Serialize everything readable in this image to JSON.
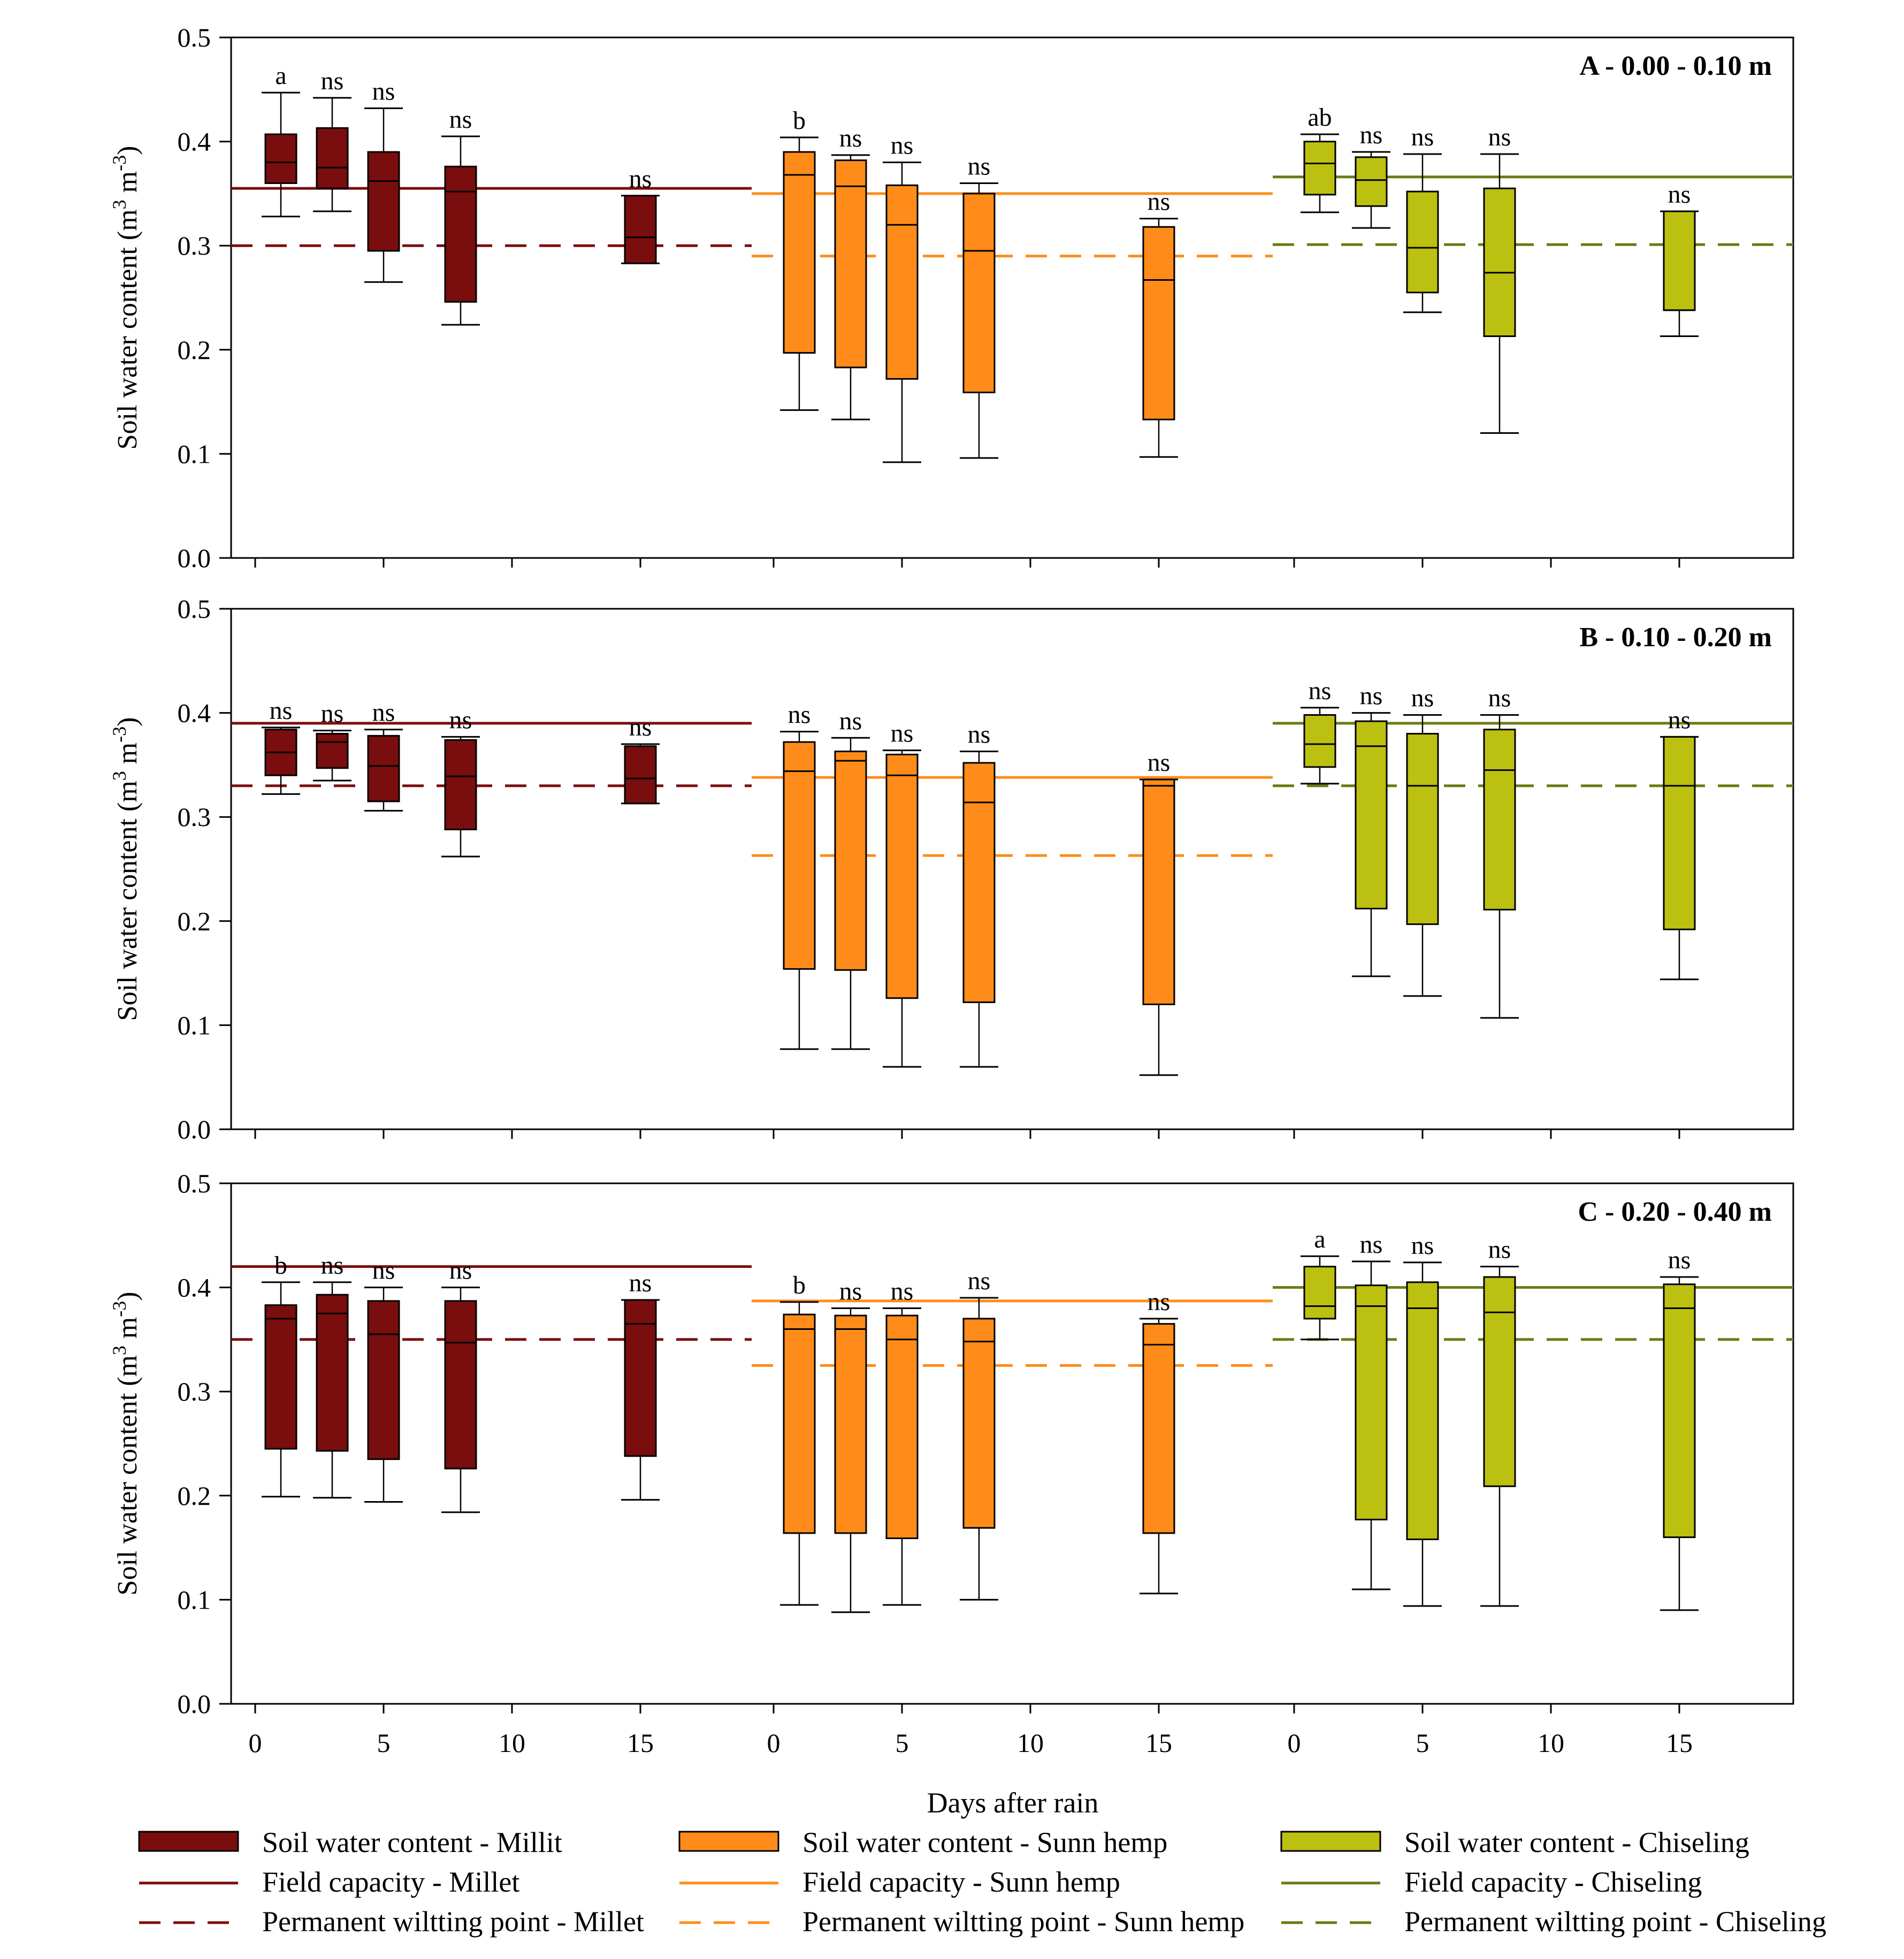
{
  "chart_data": {
    "type": "box",
    "xlabel": "Days after rain",
    "ylabel": "Soil water content (m3 m-3)",
    "ylim": [
      0,
      0.5
    ],
    "yticks": [
      "0.0",
      "0.1",
      "0.2",
      "0.3",
      "0.4",
      "0.5"
    ],
    "xticks": [
      "0",
      "5",
      "10",
      "15"
    ],
    "treatments": [
      {
        "key": "millet",
        "color": "#7a0d0d",
        "line_color": "#7a0d0d"
      },
      {
        "key": "sunn",
        "color": "#ff8c1a",
        "line_color": "#ff8c1a"
      },
      {
        "key": "chisel",
        "color": "#bcc010",
        "line_color": "#6b7a12"
      }
    ],
    "legend": [
      {
        "treatment": "millet",
        "kind": "box",
        "label": "Soil water content - Millit"
      },
      {
        "treatment": "millet",
        "kind": "solid",
        "label": "Field capacity - Millet"
      },
      {
        "treatment": "millet",
        "kind": "dashed",
        "label": "Permanent wiltting point - Millet"
      },
      {
        "treatment": "sunn",
        "kind": "box",
        "label": "Soil water content - Sunn hemp"
      },
      {
        "treatment": "sunn",
        "kind": "solid",
        "label": "Field capacity - Sunn hemp"
      },
      {
        "treatment": "sunn",
        "kind": "dashed",
        "label": "Permanent wiltting point - Sunn hemp"
      },
      {
        "treatment": "chisel",
        "kind": "box",
        "label": "Soil water content - Chiseling"
      },
      {
        "treatment": "chisel",
        "kind": "solid",
        "label": "Field capacity - Chiseling"
      },
      {
        "treatment": "chisel",
        "kind": "dashed",
        "label": "Permanent wiltting point -  Chiseling"
      }
    ],
    "panels": [
      {
        "title": "A - 0.00 - 0.10 m",
        "groups": [
          {
            "treatment": "millet",
            "fc": 0.355,
            "pwp": 0.3,
            "boxes": [
              {
                "day": 1,
                "min": 0.328,
                "q1": 0.36,
                "median": 0.38,
                "q3": 0.407,
                "max": 0.447,
                "label": "a"
              },
              {
                "day": 3,
                "min": 0.333,
                "q1": 0.355,
                "median": 0.375,
                "q3": 0.413,
                "max": 0.442,
                "label": "ns"
              },
              {
                "day": 5,
                "min": 0.265,
                "q1": 0.295,
                "median": 0.362,
                "q3": 0.39,
                "max": 0.432,
                "label": "ns"
              },
              {
                "day": 8,
                "min": 0.224,
                "q1": 0.246,
                "median": 0.352,
                "q3": 0.376,
                "max": 0.405,
                "label": "ns"
              },
              {
                "day": 15,
                "min": 0.283,
                "q1": 0.283,
                "median": 0.308,
                "q3": 0.348,
                "max": 0.348,
                "label": "ns"
              }
            ]
          },
          {
            "treatment": "sunn",
            "fc": 0.35,
            "pwp": 0.29,
            "boxes": [
              {
                "day": 1,
                "min": 0.142,
                "q1": 0.197,
                "median": 0.368,
                "q3": 0.39,
                "max": 0.404,
                "label": "b"
              },
              {
                "day": 3,
                "min": 0.133,
                "q1": 0.183,
                "median": 0.357,
                "q3": 0.382,
                "max": 0.387,
                "label": "ns"
              },
              {
                "day": 5,
                "min": 0.092,
                "q1": 0.172,
                "median": 0.32,
                "q3": 0.358,
                "max": 0.38,
                "label": "ns"
              },
              {
                "day": 8,
                "min": 0.096,
                "q1": 0.159,
                "median": 0.295,
                "q3": 0.35,
                "max": 0.36,
                "label": "ns"
              },
              {
                "day": 15,
                "min": 0.097,
                "q1": 0.133,
                "median": 0.267,
                "q3": 0.318,
                "max": 0.326,
                "label": "ns"
              }
            ]
          },
          {
            "treatment": "chisel",
            "fc": 0.366,
            "pwp": 0.301,
            "boxes": [
              {
                "day": 1,
                "min": 0.332,
                "q1": 0.349,
                "median": 0.379,
                "q3": 0.4,
                "max": 0.407,
                "label": "ab"
              },
              {
                "day": 3,
                "min": 0.317,
                "q1": 0.338,
                "median": 0.363,
                "q3": 0.385,
                "max": 0.39,
                "label": "ns"
              },
              {
                "day": 5,
                "min": 0.236,
                "q1": 0.255,
                "median": 0.298,
                "q3": 0.352,
                "max": 0.388,
                "label": "ns"
              },
              {
                "day": 8,
                "min": 0.12,
                "q1": 0.213,
                "median": 0.274,
                "q3": 0.355,
                "max": 0.388,
                "label": "ns"
              },
              {
                "day": 15,
                "min": 0.213,
                "q1": 0.238,
                "median": 0.238,
                "q3": 0.333,
                "max": 0.333,
                "label": "ns"
              }
            ]
          }
        ]
      },
      {
        "title": "B - 0.10 - 0.20 m",
        "groups": [
          {
            "treatment": "millet",
            "fc": 0.39,
            "pwp": 0.33,
            "boxes": [
              {
                "day": 1,
                "min": 0.322,
                "q1": 0.34,
                "median": 0.362,
                "q3": 0.384,
                "max": 0.386,
                "label": "ns"
              },
              {
                "day": 3,
                "min": 0.335,
                "q1": 0.347,
                "median": 0.372,
                "q3": 0.38,
                "max": 0.383,
                "label": "ns"
              },
              {
                "day": 5,
                "min": 0.306,
                "q1": 0.315,
                "median": 0.349,
                "q3": 0.378,
                "max": 0.384,
                "label": "ns"
              },
              {
                "day": 8,
                "min": 0.262,
                "q1": 0.288,
                "median": 0.339,
                "q3": 0.374,
                "max": 0.377,
                "label": "ns"
              },
              {
                "day": 15,
                "min": 0.313,
                "q1": 0.313,
                "median": 0.337,
                "q3": 0.368,
                "max": 0.37,
                "label": "ns"
              }
            ]
          },
          {
            "treatment": "sunn",
            "fc": 0.338,
            "pwp": 0.263,
            "boxes": [
              {
                "day": 1,
                "min": 0.077,
                "q1": 0.154,
                "median": 0.344,
                "q3": 0.372,
                "max": 0.382,
                "label": "ns"
              },
              {
                "day": 3,
                "min": 0.077,
                "q1": 0.153,
                "median": 0.354,
                "q3": 0.363,
                "max": 0.376,
                "label": "ns"
              },
              {
                "day": 5,
                "min": 0.06,
                "q1": 0.126,
                "median": 0.34,
                "q3": 0.36,
                "max": 0.364,
                "label": "ns"
              },
              {
                "day": 8,
                "min": 0.06,
                "q1": 0.122,
                "median": 0.314,
                "q3": 0.352,
                "max": 0.363,
                "label": "ns"
              },
              {
                "day": 15,
                "min": 0.052,
                "q1": 0.12,
                "median": 0.33,
                "q3": 0.336,
                "max": 0.336,
                "label": "ns"
              }
            ]
          },
          {
            "treatment": "chisel",
            "fc": 0.39,
            "pwp": 0.33,
            "boxes": [
              {
                "day": 1,
                "min": 0.332,
                "q1": 0.348,
                "median": 0.37,
                "q3": 0.398,
                "max": 0.405,
                "label": "ns"
              },
              {
                "day": 3,
                "min": 0.147,
                "q1": 0.212,
                "median": 0.368,
                "q3": 0.392,
                "max": 0.4,
                "label": "ns"
              },
              {
                "day": 5,
                "min": 0.128,
                "q1": 0.197,
                "median": 0.33,
                "q3": 0.38,
                "max": 0.398,
                "label": "ns"
              },
              {
                "day": 8,
                "min": 0.107,
                "q1": 0.211,
                "median": 0.345,
                "q3": 0.384,
                "max": 0.398,
                "label": "ns"
              },
              {
                "day": 15,
                "min": 0.144,
                "q1": 0.192,
                "median": 0.33,
                "q3": 0.377,
                "max": 0.377,
                "label": "ns"
              }
            ]
          }
        ]
      },
      {
        "title": "C - 0.20 - 0.40 m",
        "groups": [
          {
            "treatment": "millet",
            "fc": 0.42,
            "pwp": 0.35,
            "boxes": [
              {
                "day": 1,
                "min": 0.199,
                "q1": 0.245,
                "median": 0.37,
                "q3": 0.383,
                "max": 0.405,
                "label": "b"
              },
              {
                "day": 3,
                "min": 0.198,
                "q1": 0.243,
                "median": 0.375,
                "q3": 0.393,
                "max": 0.405,
                "label": "ns"
              },
              {
                "day": 5,
                "min": 0.194,
                "q1": 0.235,
                "median": 0.355,
                "q3": 0.387,
                "max": 0.4,
                "label": "ns"
              },
              {
                "day": 8,
                "min": 0.184,
                "q1": 0.226,
                "median": 0.347,
                "q3": 0.387,
                "max": 0.4,
                "label": "ns"
              },
              {
                "day": 15,
                "min": 0.196,
                "q1": 0.238,
                "median": 0.365,
                "q3": 0.388,
                "max": 0.388,
                "label": "ns"
              }
            ]
          },
          {
            "treatment": "sunn",
            "fc": 0.387,
            "pwp": 0.325,
            "boxes": [
              {
                "day": 1,
                "min": 0.095,
                "q1": 0.164,
                "median": 0.36,
                "q3": 0.374,
                "max": 0.386,
                "label": "b"
              },
              {
                "day": 3,
                "min": 0.088,
                "q1": 0.164,
                "median": 0.36,
                "q3": 0.373,
                "max": 0.38,
                "label": "ns"
              },
              {
                "day": 5,
                "min": 0.095,
                "q1": 0.159,
                "median": 0.35,
                "q3": 0.373,
                "max": 0.38,
                "label": "ns"
              },
              {
                "day": 8,
                "min": 0.1,
                "q1": 0.169,
                "median": 0.348,
                "q3": 0.37,
                "max": 0.39,
                "label": "ns"
              },
              {
                "day": 15,
                "min": 0.106,
                "q1": 0.164,
                "median": 0.345,
                "q3": 0.365,
                "max": 0.37,
                "label": "ns"
              }
            ]
          },
          {
            "treatment": "chisel",
            "fc": 0.4,
            "pwp": 0.35,
            "boxes": [
              {
                "day": 1,
                "min": 0.35,
                "q1": 0.37,
                "median": 0.382,
                "q3": 0.42,
                "max": 0.43,
                "label": "a"
              },
              {
                "day": 3,
                "min": 0.11,
                "q1": 0.177,
                "median": 0.382,
                "q3": 0.402,
                "max": 0.425,
                "label": "ns"
              },
              {
                "day": 5,
                "min": 0.094,
                "q1": 0.158,
                "median": 0.38,
                "q3": 0.405,
                "max": 0.424,
                "label": "ns"
              },
              {
                "day": 8,
                "min": 0.094,
                "q1": 0.209,
                "median": 0.376,
                "q3": 0.41,
                "max": 0.42,
                "label": "ns"
              },
              {
                "day": 15,
                "min": 0.09,
                "q1": 0.16,
                "median": 0.38,
                "q3": 0.403,
                "max": 0.41,
                "label": "ns"
              }
            ]
          }
        ]
      }
    ]
  }
}
